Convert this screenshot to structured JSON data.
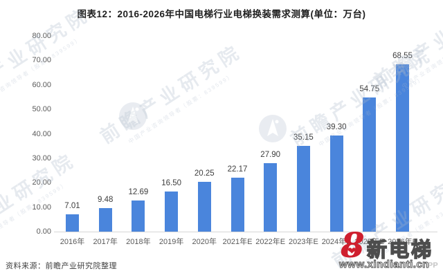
{
  "chart_data": {
    "type": "bar",
    "title": "图表12：2016-2026年中国电梯行业电梯换装需求测算(单位：万台)",
    "unit": "万台",
    "categories": [
      "2016年",
      "2017年",
      "2018年",
      "2019年",
      "2020年",
      "2021年E",
      "2022年E",
      "2023年E",
      "2024年E",
      "2025年E",
      "2026年E"
    ],
    "values": [
      7.01,
      9.48,
      12.69,
      16.5,
      20.25,
      22.17,
      27.9,
      35.15,
      39.3,
      54.75,
      68.55
    ],
    "value_labels": [
      "7.01",
      "9.48",
      "12.69",
      "16.50",
      "20.25",
      "22.17",
      "27.90",
      "35.15",
      "39.30",
      "54.75",
      "68.55"
    ],
    "xlabel": "",
    "ylabel": "",
    "ylim": [
      0,
      80
    ],
    "y_ticks": [
      "0.00",
      "10.00",
      "20.00",
      "30.00",
      "40.00",
      "50.00",
      "60.00",
      "70.00",
      "80.00"
    ],
    "grid": false,
    "legend": null,
    "bar_color": "#4a85dc"
  },
  "source": {
    "label": "资料来源：前瞻产业研究院整理"
  },
  "watermark": {
    "brand": "前瞻产业研究院",
    "tagline": "中国产业咨询领导者（股票：839599）"
  },
  "branding": {
    "logo_glyph": "8",
    "heart_glyph": "❤",
    "site_name": "新电梯",
    "site_url": "www.xindianti.cn",
    "suffix": "PP"
  },
  "colors": {
    "bar": "#4a85dc",
    "axis_line": "#d6d6d6",
    "tick_text": "#595959",
    "value_text": "#3d3d3d",
    "title_text": "#1f1f1f",
    "brand_red": "#cf1f2e",
    "watermark_gray": "#adb8c9"
  }
}
